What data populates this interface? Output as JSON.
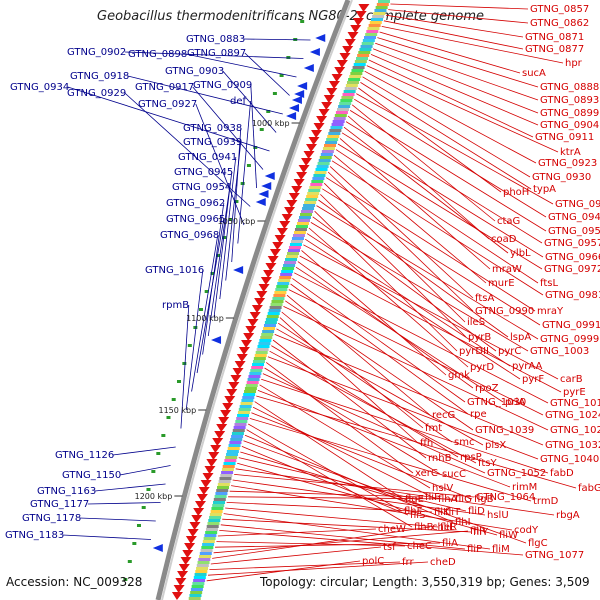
{
  "title": "Geobacillus thermodenitrificans NG80-2, complete genome",
  "accession": "Accession: NC_009328",
  "topology": "Topology: circular; Length: 3,550,319 bp; Genes: 3,509",
  "colors": {
    "gene_label_left": "#00008b",
    "gene_label_right": "#d40000",
    "backbone": "#888888",
    "arrow_right": "#e01010",
    "arrow_left": "#1030e0"
  },
  "ticks": [
    "1000 kbp",
    "1050 kbp",
    "1100 kbp",
    "1150 kbp",
    "1200 kbp"
  ],
  "left_labels": [
    "GTNG_0883",
    "GTNG_0902",
    "GTNG_0898",
    "GTNG_0897",
    "GTNG_0918",
    "GTNG_0903",
    "GTNG_0934",
    "GTNG_0917",
    "GTNG_0909",
    "GTNG_0929",
    "GTNG_0927",
    "def",
    "GTNG_0938",
    "GTNG_0939",
    "GTNG_0941",
    "GTNG_0945",
    "GTNG_0954",
    "GTNG_0962",
    "GTNG_0965",
    "GTNG_0968",
    "GTNG_1016",
    "rpmB",
    "GTNG_1126",
    "GTNG_1150",
    "GTNG_1163",
    "GTNG_1177",
    "GTNG_1178",
    "GTNG_1183"
  ],
  "right_labels": [
    "GTNG_0857",
    "GTNG_0862",
    "GTNG_0871",
    "GTNG_0877",
    "hpr",
    "sucA",
    "GTNG_0888",
    "GTNG_0893",
    "GTNG_0899",
    "GTNG_0904",
    "GTNG_0911",
    "ktrA",
    "GTNG_0923",
    "GTNG_0930",
    "typA",
    "phoH",
    "GTNG_0942",
    "GTNG_0946",
    "ctaG",
    "GTNG_0950",
    "coaD",
    "GTNG_0957",
    "ylbL",
    "GTNG_0966",
    "mraW",
    "GTNG_0972",
    "ftsL",
    "murE",
    "GTNG_0981",
    "ftsA",
    "GTNG_0990",
    "mraY",
    "ileS",
    "GTNG_0991",
    "pyrB",
    "lspA",
    "GTNG_0999",
    "pyrDII",
    "pyrC",
    "GTNG_1003",
    "pyrD",
    "pyrAA",
    "pyrF",
    "carB",
    "gmk",
    "pyrE",
    "rpoZ",
    "priA",
    "GTNG_1018",
    "GTNG_1030",
    "rpe",
    "GTNG_1024",
    "recG",
    "GTNG_1039",
    "GTNG_1028",
    "fmt",
    "ffh",
    "smc",
    "plsX",
    "GTNG_1032",
    "rnhB",
    "rpsP",
    "ftsY",
    "GTNG_1040",
    "xerC",
    "sucC",
    "GTNG_1052",
    "fabD",
    "hslV",
    "rimM",
    "fabG",
    "flgE",
    "flhA",
    "flgB",
    "trmD",
    "flhF",
    "flhB",
    "flhI",
    "flgC",
    "fliS",
    "fliT",
    "fliD",
    "fliW",
    "rbgA",
    "GTNG_1064",
    "hslU",
    "codY",
    "fliF",
    "fliG",
    "fliK",
    "fliL",
    "fliM",
    "fliY",
    "fliP",
    "GTNG_1077",
    "cheW",
    "cheC",
    "fliA",
    "fliR",
    "cheR",
    "tsf",
    "frr",
    "cheD",
    "polC"
  ]
}
